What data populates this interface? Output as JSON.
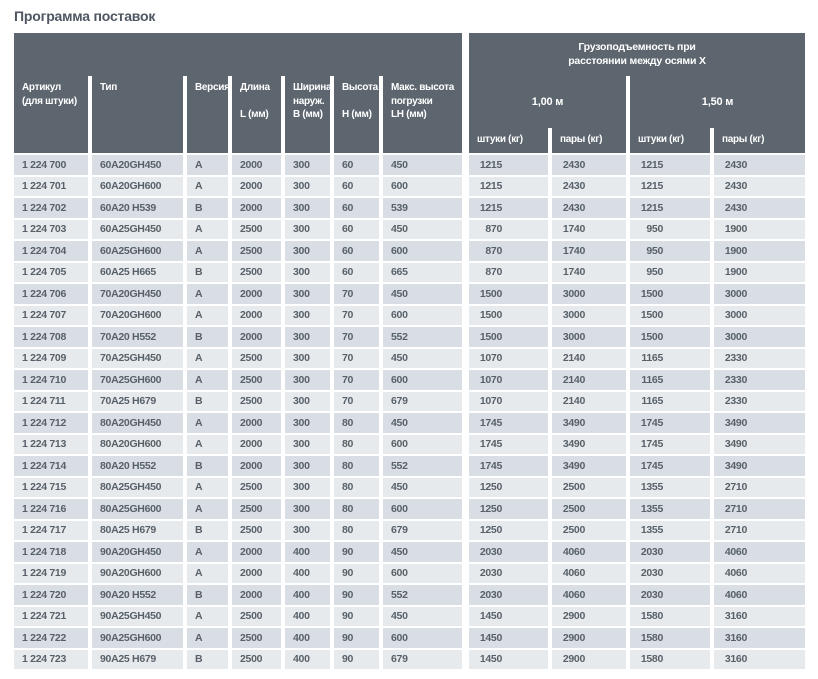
{
  "page_title": "Программа поставок",
  "colors": {
    "header_bg": "#5d666f",
    "row_odd_bg": "#d8dee3",
    "row_even_bg": "#e7eaec",
    "header_text": "#ffffff",
    "body_text": "#58616a",
    "title_text": "#4d5661"
  },
  "table": {
    "left_headers": [
      {
        "id": "article",
        "lines": [
          "Артикул",
          "(для штуки)"
        ]
      },
      {
        "id": "type",
        "lines": [
          "Тип"
        ]
      },
      {
        "id": "version",
        "lines": [
          "Версия"
        ]
      },
      {
        "id": "length",
        "lines": [
          "Длина",
          "",
          "L (мм)"
        ]
      },
      {
        "id": "outer-width",
        "lines": [
          "Ширина",
          "наруж.",
          "B (мм)"
        ]
      },
      {
        "id": "height",
        "lines": [
          "Высота",
          "",
          "H (мм)"
        ]
      },
      {
        "id": "max-load-height",
        "lines": [
          "Макс. высота",
          "погрузки",
          "LH (мм)"
        ]
      }
    ],
    "group_header_line1": "Грузоподъемность при",
    "group_header_line2": "расстоянии между осями X",
    "axle_groups": [
      {
        "label": "1,00 м"
      },
      {
        "label": "1,50 м"
      }
    ],
    "sub_headers": [
      "штуки (кг)",
      "пары (кг)",
      "штуки (кг)",
      "пары (кг)"
    ],
    "column_ids": [
      "article",
      "type",
      "version",
      "length",
      "outer-width",
      "height",
      "max-load-height",
      "units-100",
      "pairs-100",
      "units-150",
      "pairs-150"
    ],
    "rows": [
      [
        "1 224 700",
        "60A20GH450",
        "A",
        "2000",
        "300",
        "60",
        "450",
        "1215",
        "2430",
        "1215",
        "2430"
      ],
      [
        "1 224 701",
        "60A20GH600",
        "A",
        "2000",
        "300",
        "60",
        "600",
        "1215",
        "2430",
        "1215",
        "2430"
      ],
      [
        "1 224 702",
        "60A20 H539",
        "B",
        "2000",
        "300",
        "60",
        "539",
        "1215",
        "2430",
        "1215",
        "2430"
      ],
      [
        "1 224 703",
        "60A25GH450",
        "A",
        "2500",
        "300",
        "60",
        "450",
        "870",
        "1740",
        "950",
        "1900"
      ],
      [
        "1 224 704",
        "60A25GH600",
        "A",
        "2500",
        "300",
        "60",
        "600",
        "870",
        "1740",
        "950",
        "1900"
      ],
      [
        "1 224 705",
        "60A25 H665",
        "B",
        "2500",
        "300",
        "60",
        "665",
        "870",
        "1740",
        "950",
        "1900"
      ],
      [
        "1 224 706",
        "70A20GH450",
        "A",
        "2000",
        "300",
        "70",
        "450",
        "1500",
        "3000",
        "1500",
        "3000"
      ],
      [
        "1 224 707",
        "70A20GH600",
        "A",
        "2000",
        "300",
        "70",
        "600",
        "1500",
        "3000",
        "1500",
        "3000"
      ],
      [
        "1 224 708",
        "70A20 H552",
        "B",
        "2000",
        "300",
        "70",
        "552",
        "1500",
        "3000",
        "1500",
        "3000"
      ],
      [
        "1 224 709",
        "70A25GH450",
        "A",
        "2500",
        "300",
        "70",
        "450",
        "1070",
        "2140",
        "1165",
        "2330"
      ],
      [
        "1 224 710",
        "70A25GH600",
        "A",
        "2500",
        "300",
        "70",
        "600",
        "1070",
        "2140",
        "1165",
        "2330"
      ],
      [
        "1 224 711",
        "70A25 H679",
        "B",
        "2500",
        "300",
        "70",
        "679",
        "1070",
        "2140",
        "1165",
        "2330"
      ],
      [
        "1 224 712",
        "80A20GH450",
        "A",
        "2000",
        "300",
        "80",
        "450",
        "1745",
        "3490",
        "1745",
        "3490"
      ],
      [
        "1 224 713",
        "80A20GH600",
        "A",
        "2000",
        "300",
        "80",
        "600",
        "1745",
        "3490",
        "1745",
        "3490"
      ],
      [
        "1 224 714",
        "80A20 H552",
        "B",
        "2000",
        "300",
        "80",
        "552",
        "1745",
        "3490",
        "1745",
        "3490"
      ],
      [
        "1 224 715",
        "80A25GH450",
        "A",
        "2500",
        "300",
        "80",
        "450",
        "1250",
        "2500",
        "1355",
        "2710"
      ],
      [
        "1 224 716",
        "80A25GH600",
        "A",
        "2500",
        "300",
        "80",
        "600",
        "1250",
        "2500",
        "1355",
        "2710"
      ],
      [
        "1 224 717",
        "80A25 H679",
        "B",
        "2500",
        "300",
        "80",
        "679",
        "1250",
        "2500",
        "1355",
        "2710"
      ],
      [
        "1 224 718",
        "90A20GH450",
        "A",
        "2000",
        "400",
        "90",
        "450",
        "2030",
        "4060",
        "2030",
        "4060"
      ],
      [
        "1 224 719",
        "90A20GH600",
        "A",
        "2000",
        "400",
        "90",
        "600",
        "2030",
        "4060",
        "2030",
        "4060"
      ],
      [
        "1 224 720",
        "90A20 H552",
        "B",
        "2000",
        "400",
        "90",
        "552",
        "2030",
        "4060",
        "2030",
        "4060"
      ],
      [
        "1 224 721",
        "90A25GH450",
        "A",
        "2500",
        "400",
        "90",
        "450",
        "1450",
        "2900",
        "1580",
        "3160"
      ],
      [
        "1 224 722",
        "90A25GH600",
        "A",
        "2500",
        "400",
        "90",
        "600",
        "1450",
        "2900",
        "1580",
        "3160"
      ],
      [
        "1 224 723",
        "90A25 H679",
        "B",
        "2500",
        "400",
        "90",
        "679",
        "1450",
        "2900",
        "1580",
        "3160"
      ]
    ]
  }
}
